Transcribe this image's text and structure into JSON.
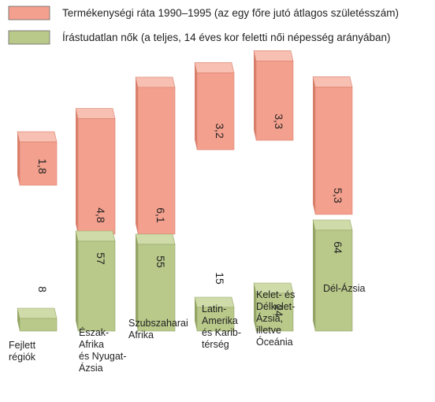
{
  "chart_data": {
    "type": "bar",
    "title": "",
    "categories": [
      [
        "Fejlett",
        "régiók"
      ],
      [
        "Észak-",
        "Afrika",
        "és Nyugat-",
        "Ázsia"
      ],
      [
        "Szubszaharai",
        "Afrika"
      ],
      [
        "Latin-",
        "Amerika",
        "és Karib-",
        "térség"
      ],
      [
        "Kelet- és",
        "Délkelet-",
        "Ázsia,",
        "illetve",
        "Óceánia"
      ],
      [
        "Dél-Ázsia"
      ]
    ],
    "series": [
      {
        "name": "Termékenységi ráta 1990–1995 (az egy főre jutó átlagos születésszám)",
        "values": [
          1.8,
          4.8,
          6.1,
          3.2,
          3.3,
          5.3
        ],
        "labels": [
          "1,8",
          "4,8",
          "6,1",
          "3,2",
          "3,3",
          "5,3"
        ],
        "color": "#f4a08e",
        "color_side": "#d9806d",
        "color_top": "#f7c0b2"
      },
      {
        "name": "Írástudatlan nők (a teljes, 14 éves kor feletti női népesség arányában)",
        "values": [
          8,
          57,
          55,
          15,
          24,
          64
        ],
        "labels": [
          "8",
          "57",
          "55",
          "15",
          "24",
          "64"
        ],
        "color": "#b9c98a",
        "color_side": "#94a566",
        "color_top": "#cfdba9"
      }
    ],
    "legend": "top-left",
    "grid": false
  }
}
